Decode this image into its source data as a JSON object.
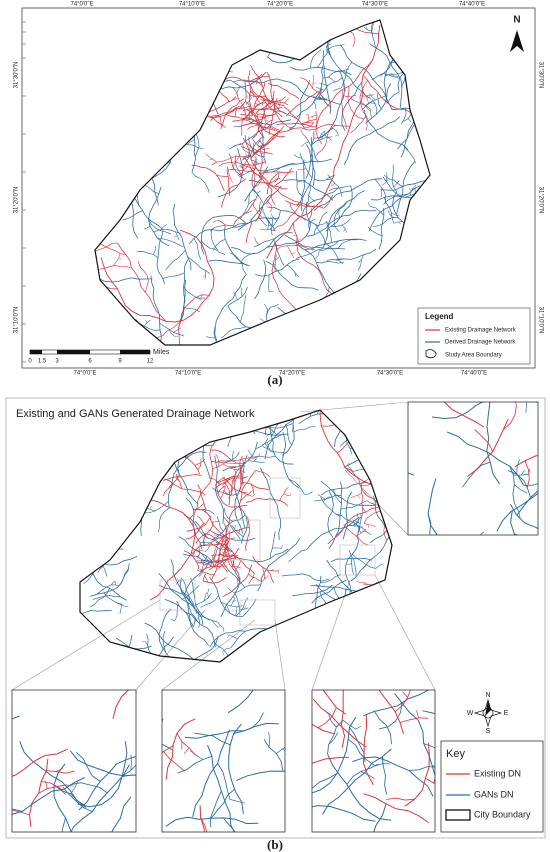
{
  "panel_a": {
    "top_coords": [
      "74°0'0\"E",
      "74°10'0\"E",
      "74°20'0\"E",
      "74°30'0\"E",
      "74°40'0\"E"
    ],
    "left_coords": [
      "31°30'0\"N",
      "31°20'0\"N",
      "31°10'0\"N"
    ],
    "right_coords": [
      "31°30'0\"N",
      "31°20'0\"N",
      "31°10'0\"N"
    ],
    "bottom_coords": [
      "74°0'0\"E",
      "74°10'0\"E",
      "74°20'0\"E",
      "74°30'0\"E",
      "74°40'0\"E"
    ],
    "north": "N",
    "legend": {
      "title": "Legend",
      "items": [
        "Existing Drainage Network",
        "Derived Drainage Network",
        "Study Area Boundary"
      ]
    },
    "scale": {
      "labels": [
        "0",
        "1.5",
        "3",
        "6",
        "9",
        "12"
      ],
      "unit": "Miles"
    },
    "caption": "(a)"
  },
  "panel_b": {
    "title": "Existing and GANs Generated Drainage Network",
    "compass": {
      "n": "N",
      "s": "S",
      "e": "E",
      "w": "W"
    },
    "key": {
      "title": "Key",
      "items": [
        "Existing DN",
        "GANs DN",
        "City Boundary"
      ]
    },
    "caption": "(b)"
  }
}
